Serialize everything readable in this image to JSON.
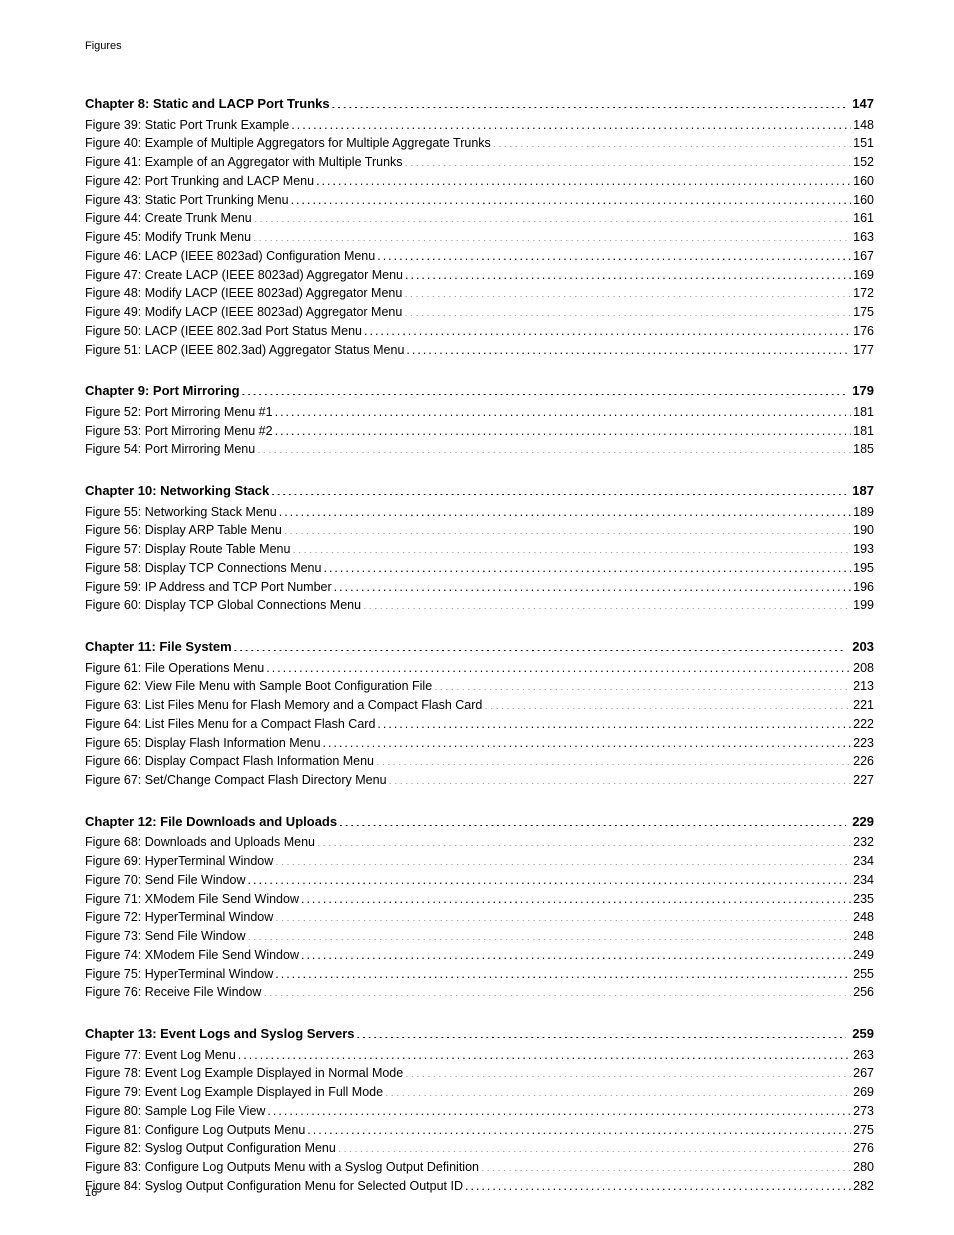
{
  "header": "Figures",
  "page_number": "16",
  "sections": [
    {
      "chapter": {
        "label": "Chapter 8: Static and LACP Port Trunks",
        "page": "147"
      },
      "entries": [
        {
          "label": "Figure 39: Static Port Trunk Example",
          "page": "148"
        },
        {
          "label": "Figure 40: Example of Multiple Aggregators for Multiple Aggregate Trunks",
          "page": "151"
        },
        {
          "label": "Figure 41: Example of an Aggregator with Multiple Trunks",
          "page": "152"
        },
        {
          "label": "Figure 42: Port Trunking and LACP Menu",
          "page": "160"
        },
        {
          "label": "Figure 43: Static Port Trunking Menu",
          "page": "160"
        },
        {
          "label": "Figure 44: Create Trunk Menu",
          "page": "161"
        },
        {
          "label": "Figure 45: Modify Trunk Menu",
          "page": "163"
        },
        {
          "label": "Figure 46: LACP (IEEE 8023ad) Configuration Menu",
          "page": "167"
        },
        {
          "label": "Figure 47: Create LACP (IEEE 8023ad) Aggregator Menu",
          "page": "169"
        },
        {
          "label": "Figure 48: Modify LACP (IEEE 8023ad) Aggregator Menu",
          "page": "172"
        },
        {
          "label": "Figure 49: Modify LACP (IEEE 8023ad) Aggregator Menu",
          "page": "175"
        },
        {
          "label": "Figure 50: LACP (IEEE 802.3ad Port Status Menu",
          "page": "176"
        },
        {
          "label": "Figure 51: LACP (IEEE 802.3ad) Aggregator Status Menu",
          "page": "177"
        }
      ]
    },
    {
      "chapter": {
        "label": "Chapter 9: Port Mirroring",
        "page": "179"
      },
      "entries": [
        {
          "label": "Figure 52: Port Mirroring Menu #1",
          "page": "181"
        },
        {
          "label": "Figure 53: Port Mirroring Menu #2",
          "page": "181"
        },
        {
          "label": "Figure 54: Port Mirroring Menu",
          "page": "185"
        }
      ]
    },
    {
      "chapter": {
        "label": "Chapter 10: Networking Stack",
        "page": "187"
      },
      "entries": [
        {
          "label": "Figure 55: Networking Stack Menu",
          "page": "189"
        },
        {
          "label": "Figure 56: Display ARP Table Menu",
          "page": "190"
        },
        {
          "label": "Figure 57: Display Route Table Menu",
          "page": "193"
        },
        {
          "label": "Figure 58: Display TCP Connections Menu",
          "page": "195"
        },
        {
          "label": "Figure 59: IP Address and TCP Port Number",
          "page": "196"
        },
        {
          "label": "Figure 60: Display TCP Global Connections Menu",
          "page": "199"
        }
      ]
    },
    {
      "chapter": {
        "label": "Chapter 11: File System",
        "page": "203"
      },
      "entries": [
        {
          "label": "Figure 61: File Operations Menu",
          "page": "208"
        },
        {
          "label": "Figure 62: View File Menu with Sample Boot Configuration File",
          "page": "213"
        },
        {
          "label": "Figure 63: List Files Menu for Flash Memory and a Compact Flash Card",
          "page": "221"
        },
        {
          "label": "Figure 64: List Files Menu for a Compact Flash Card",
          "page": "222"
        },
        {
          "label": "Figure 65: Display Flash Information Menu",
          "page": "223"
        },
        {
          "label": "Figure 66: Display Compact Flash Information Menu",
          "page": "226"
        },
        {
          "label": "Figure 67: Set/Change Compact Flash Directory Menu",
          "page": "227"
        }
      ]
    },
    {
      "chapter": {
        "label": "Chapter 12: File Downloads and Uploads",
        "page": "229"
      },
      "entries": [
        {
          "label": "Figure 68: Downloads and Uploads Menu",
          "page": "232"
        },
        {
          "label": "Figure 69: HyperTerminal Window",
          "page": "234"
        },
        {
          "label": "Figure 70: Send File Window",
          "page": "234"
        },
        {
          "label": "Figure 71: XModem File Send Window",
          "page": "235"
        },
        {
          "label": "Figure 72: HyperTerminal Window",
          "page": "248"
        },
        {
          "label": "Figure 73: Send File Window",
          "page": "248"
        },
        {
          "label": "Figure 74: XModem File Send Window",
          "page": "249"
        },
        {
          "label": "Figure 75: HyperTerminal Window",
          "page": "255"
        },
        {
          "label": "Figure 76: Receive File Window",
          "page": "256"
        }
      ]
    },
    {
      "chapter": {
        "label": "Chapter 13: Event Logs and Syslog Servers",
        "page": "259"
      },
      "entries": [
        {
          "label": "Figure 77: Event Log Menu",
          "page": "263"
        },
        {
          "label": "Figure 78: Event Log Example Displayed in Normal Mode",
          "page": "267"
        },
        {
          "label": "Figure 79: Event Log Example Displayed in Full Mode",
          "page": "269"
        },
        {
          "label": "Figure 80: Sample Log File View",
          "page": "273"
        },
        {
          "label": "Figure 81: Configure Log Outputs Menu",
          "page": "275"
        },
        {
          "label": "Figure 82: Syslog Output Configuration Menu",
          "page": "276"
        },
        {
          "label": "Figure 83: Configure Log Outputs Menu with a Syslog Output Definition",
          "page": "280"
        },
        {
          "label": "Figure 84: Syslog Output Configuration Menu for Selected Output ID",
          "page": "282"
        }
      ]
    }
  ]
}
